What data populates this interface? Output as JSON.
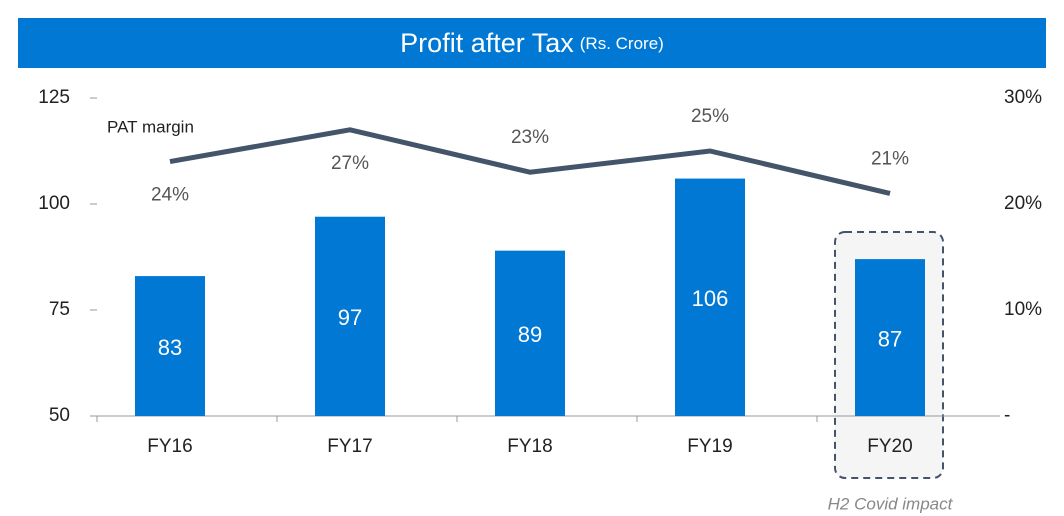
{
  "chart_data": {
    "type": "bar",
    "title": "Profit after Tax",
    "subtitle": "(Rs. Crore)",
    "categories": [
      "FY16",
      "FY17",
      "FY18",
      "FY19",
      "FY20"
    ],
    "series": [
      {
        "name": "PAT",
        "type": "bar",
        "color": "#0078d4",
        "values": [
          83,
          97,
          89,
          106,
          87
        ]
      },
      {
        "name": "PAT margin",
        "type": "line",
        "axis": "y2",
        "color": "#44546a",
        "values": [
          24,
          27,
          23,
          25,
          21
        ],
        "value_labels": [
          "24%",
          "27%",
          "23%",
          "25%",
          "21%"
        ]
      }
    ],
    "ylim": [
      50,
      125
    ],
    "yticks": [
      50,
      75,
      100,
      125
    ],
    "y2lim": [
      0,
      30
    ],
    "y2ticks": [
      {
        "value": 0,
        "label": "-"
      },
      {
        "value": 10,
        "label": "10%"
      },
      {
        "value": 20,
        "label": "20%"
      },
      {
        "value": 30,
        "label": "30%"
      }
    ],
    "annotations": [
      "H2 Covid impact"
    ]
  }
}
